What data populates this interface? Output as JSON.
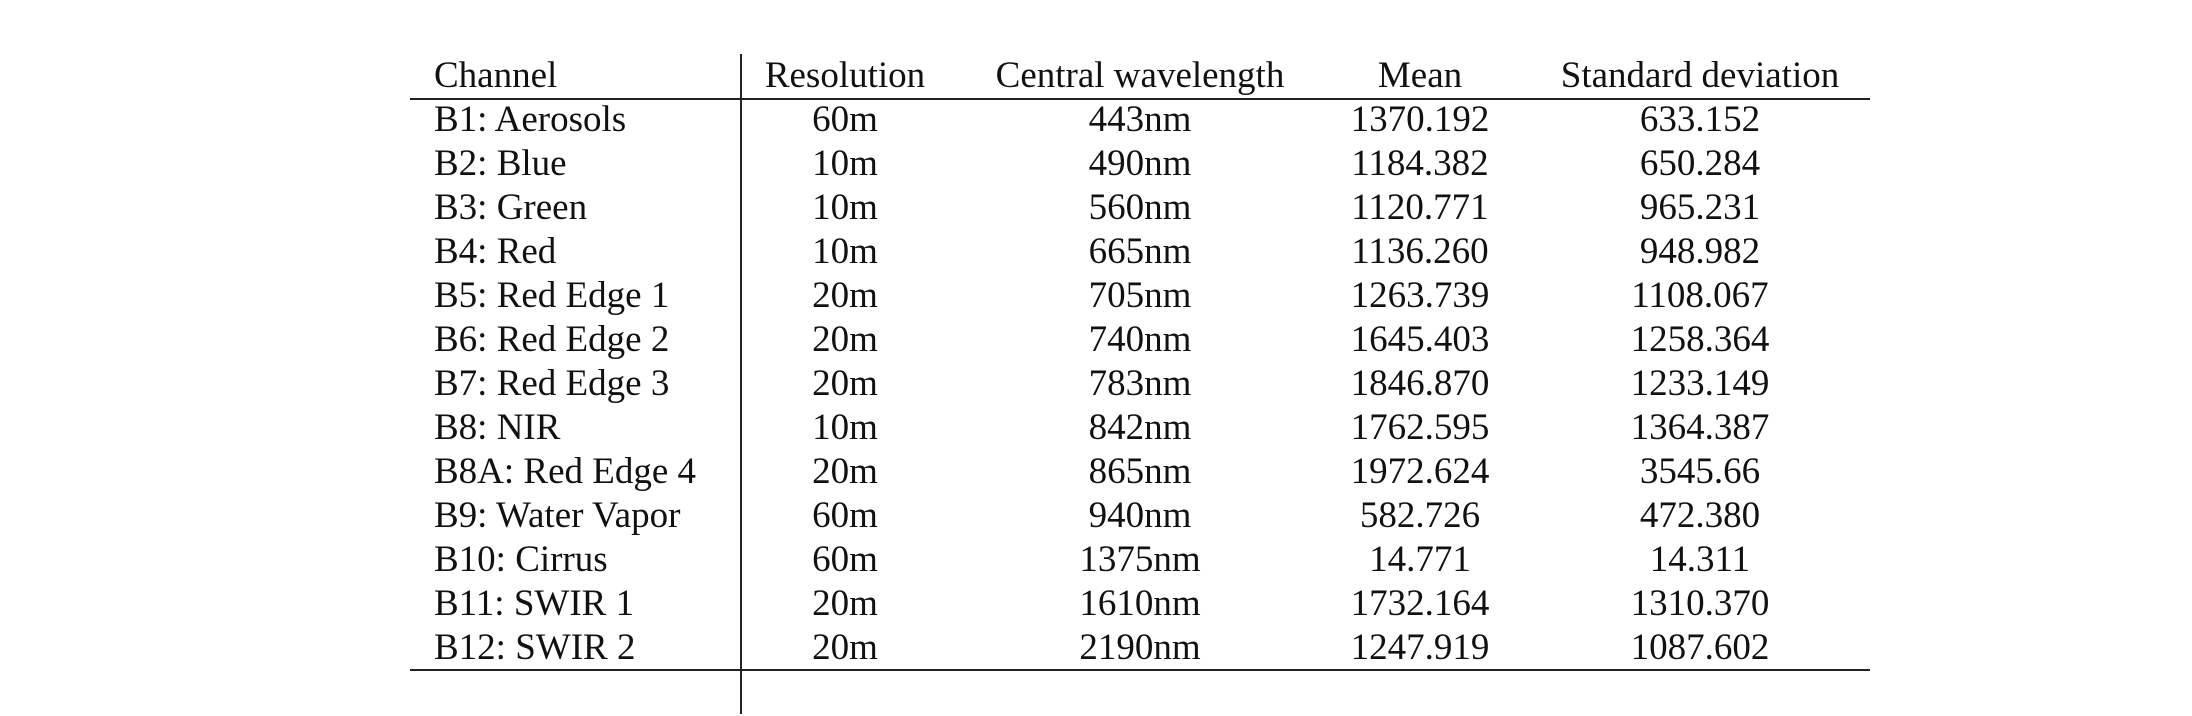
{
  "table": {
    "headers": [
      "Channel",
      "Resolution",
      "Central wavelength",
      "Mean",
      "Standard deviation"
    ],
    "rows": [
      [
        "B1: Aerosols",
        "60m",
        "443nm",
        "1370.192",
        "633.152"
      ],
      [
        "B2: Blue",
        "10m",
        "490nm",
        "1184.382",
        "650.284"
      ],
      [
        "B3: Green",
        "10m",
        "560nm",
        "1120.771",
        "965.231"
      ],
      [
        "B4: Red",
        "10m",
        "665nm",
        "1136.260",
        "948.982"
      ],
      [
        "B5: Red Edge 1",
        "20m",
        "705nm",
        "1263.739",
        "1108.067"
      ],
      [
        "B6: Red Edge 2",
        "20m",
        "740nm",
        "1645.403",
        "1258.364"
      ],
      [
        "B7: Red Edge 3",
        "20m",
        "783nm",
        "1846.870",
        "1233.149"
      ],
      [
        "B8: NIR",
        "10m",
        "842nm",
        "1762.595",
        "1364.387"
      ],
      [
        "B8A: Red Edge 4",
        "20m",
        "865nm",
        "1972.624",
        "3545.66"
      ],
      [
        "B9: Water Vapor",
        "60m",
        "940nm",
        "582.726",
        "472.380"
      ],
      [
        "B10: Cirrus",
        "60m",
        "1375nm",
        "14.771",
        "14.311"
      ],
      [
        "B11: SWIR 1",
        "20m",
        "1610nm",
        "1732.164",
        "1310.370"
      ],
      [
        "B12: SWIR 2",
        "20m",
        "2190nm",
        "1247.919",
        "1087.602"
      ]
    ]
  }
}
